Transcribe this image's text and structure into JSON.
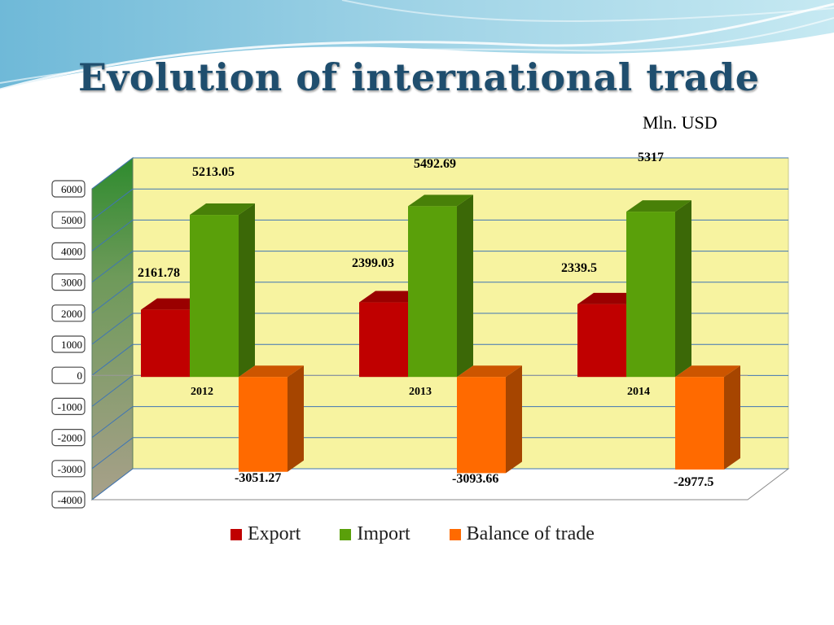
{
  "title": "Evolution of international trade",
  "unit_label": "Mln. USD",
  "colors": {
    "title": "#1f4e6e",
    "export": "#c00000",
    "import": "#5aa00a",
    "balance": "#ff6a00",
    "wall": "#f7f3a0",
    "gridline": "#3f75b5"
  },
  "chart_data": {
    "type": "bar",
    "categories": [
      "2012",
      "2013",
      "2014"
    ],
    "series": [
      {
        "name": "Export",
        "values": [
          2161.78,
          2399.03,
          2339.5
        ],
        "labels": [
          "2161.78",
          "2399.03",
          "2339.5"
        ]
      },
      {
        "name": "Import",
        "values": [
          5213.05,
          5492.69,
          5317
        ],
        "labels": [
          "5213.05",
          "5492.69",
          "5317"
        ]
      },
      {
        "name": "Balance of trade",
        "values": [
          -3051.27,
          -3093.66,
          -2977.5
        ],
        "labels": [
          "-3051.27",
          "-3093.66",
          "-2977.5"
        ]
      }
    ],
    "y_ticks": [
      "6000",
      "5000",
      "4000",
      "3000",
      "2000",
      "1000",
      "0",
      "-1000",
      "-2000",
      "-3000",
      "-4000"
    ],
    "ylim": [
      -4000,
      6000
    ],
    "grid": true,
    "three_d": true,
    "legend_position": "bottom"
  }
}
